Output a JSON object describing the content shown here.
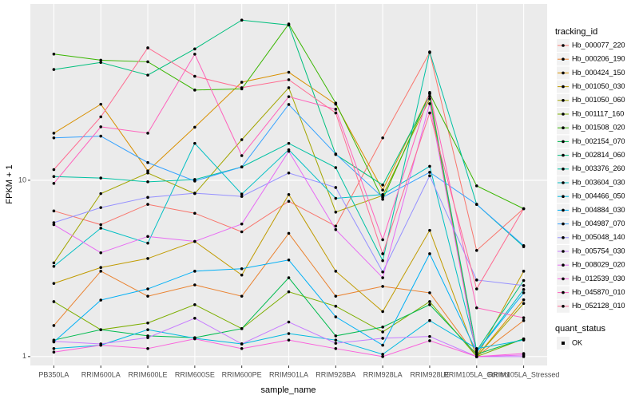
{
  "chart_data": {
    "type": "line",
    "log_scale": true,
    "grid": true,
    "x_label": "sample_name",
    "y_label": "FPKM + 1",
    "legend_title": "tracking_id",
    "legend_position": "right",
    "point_legend_title": "quant_status",
    "point_legend_label": "OK",
    "point_color": "#000000",
    "categories": [
      "PB350LA",
      "RRIM600LA",
      "RRIM600LE",
      "RRIM600SE",
      "RRIM600PE",
      "RRIM901LA",
      "RRIM928BA",
      "RRIM928LA",
      "RRIM928LE",
      "RRIM105LA_Control",
      "RRIM105LA_Stressed"
    ],
    "ylim": [
      0.89,
      100
    ],
    "yticks": [
      1,
      10
    ],
    "series": [
      {
        "name": "Hb_000077_220",
        "color": "#F8766D",
        "values": [
          6.7,
          5.6,
          7.3,
          6.5,
          5.1,
          7.6,
          5.5,
          17.4,
          53,
          4.0,
          6.9
        ]
      },
      {
        "name": "Hb_000206_190",
        "color": "#EA8331",
        "values": [
          1.5,
          3.05,
          2.2,
          2.55,
          2.2,
          5.0,
          2.2,
          2.5,
          2.3,
          1.0,
          1.6
        ]
      },
      {
        "name": "Hb_000424_150",
        "color": "#D89000",
        "values": [
          18.5,
          27,
          11.3,
          20,
          36,
          41,
          27,
          8.8,
          31,
          1.0,
          2.1
        ]
      },
      {
        "name": "Hb_001050_030",
        "color": "#C09B00",
        "values": [
          2.6,
          3.2,
          3.6,
          4.5,
          2.9,
          8.3,
          3.05,
          1.8,
          5.2,
          1.0,
          3.05
        ]
      },
      {
        "name": "Hb_001050_060",
        "color": "#A3A500",
        "values": [
          3.4,
          8.4,
          11,
          8.4,
          17,
          33.5,
          6.6,
          8.2,
          29,
          1.0,
          2.0
        ]
      },
      {
        "name": "Hb_001117_160",
        "color": "#7CAE00",
        "values": [
          2.05,
          1.42,
          1.55,
          1.97,
          1.44,
          2.33,
          1.93,
          1.38,
          2.05,
          1.0,
          1.26
        ]
      },
      {
        "name": "Hb_001508_020",
        "color": "#39B600",
        "values": [
          52,
          48,
          47,
          32.5,
          33,
          77,
          27.4,
          7.8,
          31,
          9.3,
          6.9
        ]
      },
      {
        "name": "Hb_002154_070",
        "color": "#00BB4E",
        "values": [
          1.24,
          1.42,
          1.31,
          1.28,
          1.44,
          2.8,
          1.31,
          1.47,
          1.97,
          1.03,
          1.26
        ]
      },
      {
        "name": "Hb_002814_060",
        "color": "#00BF7D",
        "values": [
          42.5,
          46.6,
          39.5,
          55.6,
          81,
          76,
          14,
          9.4,
          30,
          1.08,
          2.7
        ]
      },
      {
        "name": "Hb_003376_260",
        "color": "#00C1A3",
        "values": [
          10.5,
          10.3,
          9.8,
          10.1,
          11.9,
          16.2,
          11.8,
          3.5,
          53.5,
          7.3,
          4.2
        ]
      },
      {
        "name": "Hb_003604_030",
        "color": "#00BFC4",
        "values": [
          3.25,
          5.35,
          4.4,
          16.2,
          8.35,
          14.9,
          7.9,
          8.3,
          12,
          1.06,
          2.4
        ]
      },
      {
        "name": "Hb_004466_050",
        "color": "#00BAE0",
        "values": [
          1.11,
          1.16,
          1.42,
          1.27,
          1.18,
          1.35,
          1.24,
          1.03,
          1.6,
          1.11,
          1.24
        ]
      },
      {
        "name": "Hb_004884_030",
        "color": "#00B0F6",
        "values": [
          1.21,
          2.09,
          2.42,
          3.05,
          3.15,
          3.53,
          1.68,
          1.16,
          3.83,
          1.06,
          2.3
        ]
      },
      {
        "name": "Hb_004987_070",
        "color": "#35A2FF",
        "values": [
          17.4,
          17.8,
          12.6,
          9.9,
          11.9,
          26.9,
          14.1,
          8.0,
          11.1,
          7.3,
          4.26
        ]
      },
      {
        "name": "Hb_005048_140",
        "color": "#9590FF",
        "values": [
          5.75,
          7.0,
          8.0,
          8.45,
          8.1,
          11.0,
          9.1,
          3.02,
          10.6,
          2.72,
          2.53
        ]
      },
      {
        "name": "Hb_005754_030",
        "color": "#C77CFF",
        "values": [
          1.22,
          1.18,
          1.28,
          1.65,
          1.18,
          1.57,
          1.19,
          1.27,
          1.3,
          1.0,
          1.0
        ]
      },
      {
        "name": "Hb_008029_020",
        "color": "#E76BF3",
        "values": [
          5.6,
          3.88,
          4.8,
          4.5,
          5.65,
          14.6,
          5.25,
          2.8,
          27.2,
          1.0,
          1.02
        ]
      },
      {
        "name": "Hb_012539_030",
        "color": "#FA62DB",
        "values": [
          1.06,
          1.16,
          1.11,
          1.26,
          1.11,
          1.24,
          1.11,
          1.0,
          1.23,
          1.0,
          1.04
        ]
      },
      {
        "name": "Hb_045870_010",
        "color": "#FF62BC",
        "values": [
          9.6,
          20.1,
          18.5,
          51.9,
          13.8,
          29.8,
          25.3,
          4.6,
          31.5,
          1.89,
          1.66
        ]
      },
      {
        "name": "Hb_052128_010",
        "color": "#FF6C91",
        "values": [
          11.5,
          22.9,
          56.4,
          38.9,
          33.5,
          37.2,
          24.1,
          3.83,
          24.1,
          2.42,
          6.9
        ]
      }
    ]
  }
}
